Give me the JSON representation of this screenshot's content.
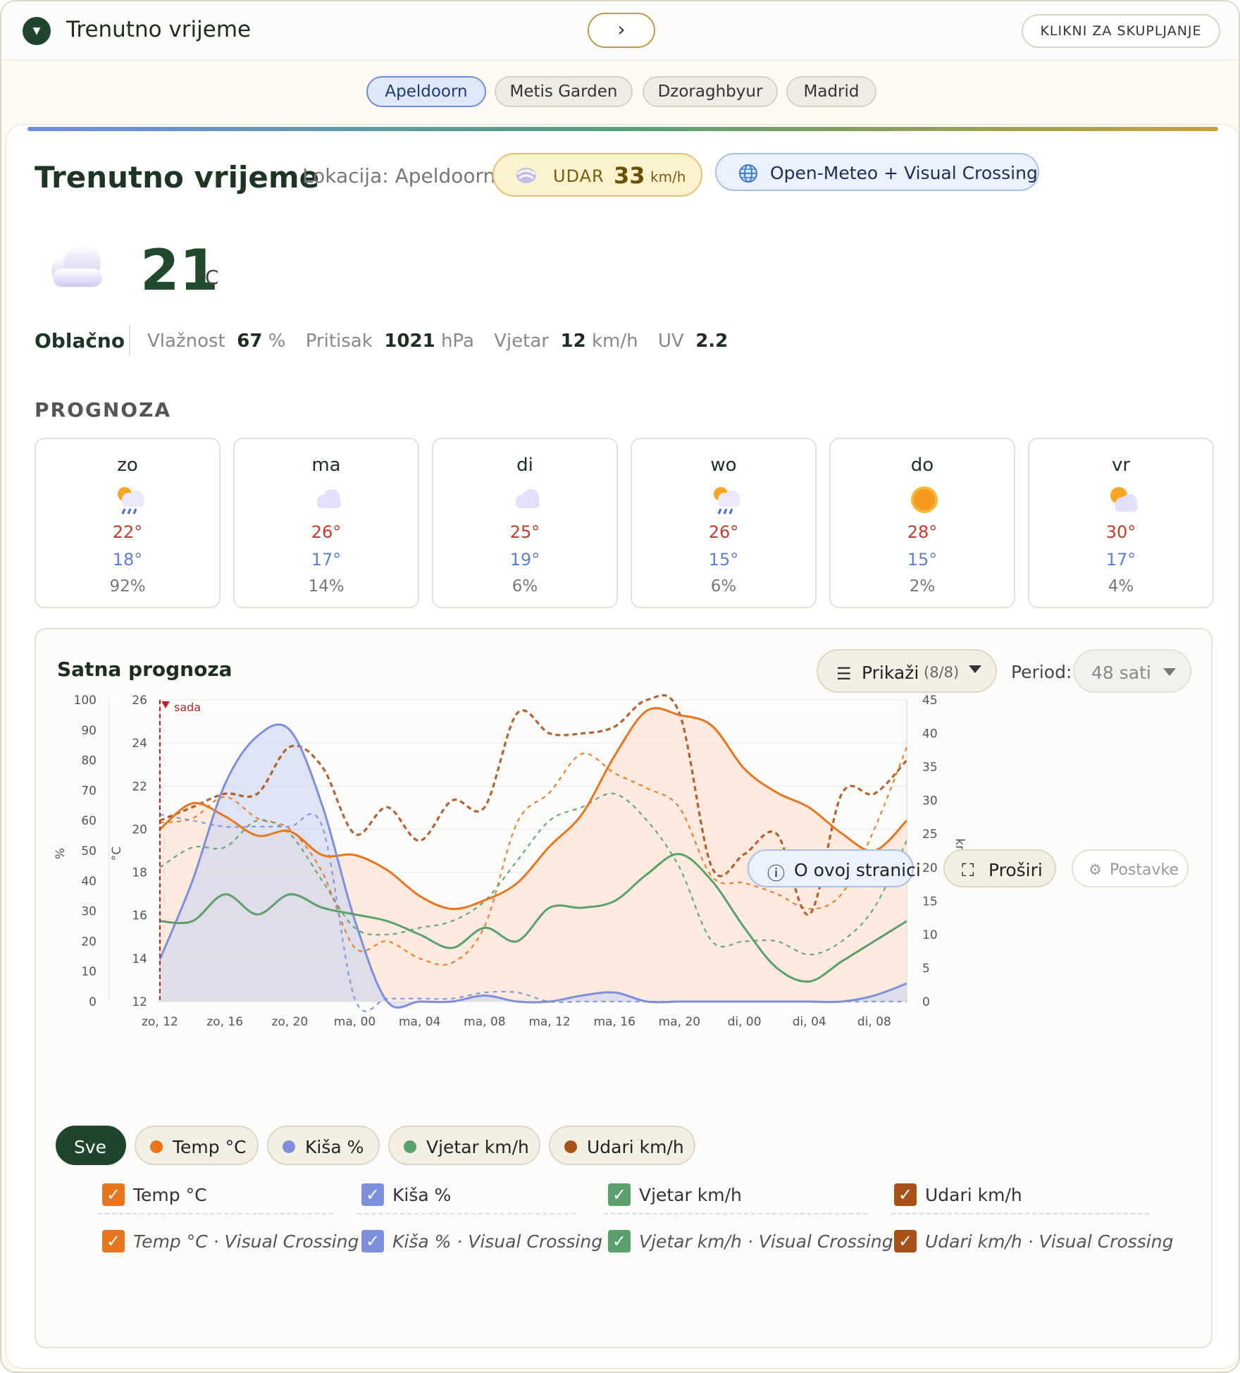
{
  "header": {
    "title": "Trenutno vrijeme",
    "next": "›",
    "collapse": "KLIKNI ZA SKUPLJANJE"
  },
  "locations": [
    "Apeldoorn",
    "Metis Garden",
    "Dzoraghbyur",
    "Madrid"
  ],
  "current": {
    "title": "Trenutno vrijeme",
    "location": "Lokacija: Apeldoorn",
    "gust_label": "UDAR",
    "gust_value": "33",
    "gust_unit": "km/h",
    "source": "Open-Meteo + Visual Crossing",
    "temp": "21",
    "temp_unit": "°C",
    "condition": "Oblačno",
    "humidity_label": "Vlažnost",
    "humidity": "67",
    "humidity_unit": "%",
    "pressure_label": "Pritisak",
    "pressure": "1021",
    "pressure_unit": "hPa",
    "wind_label": "Vjetar",
    "wind": "12",
    "wind_unit": "km/h",
    "uv_label": "UV",
    "uv": "2.2",
    "icon": "cloud-icon"
  },
  "forecast": {
    "heading": "PROGNOZA",
    "days": [
      {
        "day": "zo",
        "icon": "sun-cloud-rain-icon",
        "hi": "22°",
        "lo": "18°",
        "precip": "92%"
      },
      {
        "day": "ma",
        "icon": "cloud-icon",
        "hi": "26°",
        "lo": "17°",
        "precip": "14%"
      },
      {
        "day": "di",
        "icon": "cloud-icon",
        "hi": "25°",
        "lo": "19°",
        "precip": "6%"
      },
      {
        "day": "wo",
        "icon": "sun-cloud-rain-icon",
        "hi": "26°",
        "lo": "15°",
        "precip": "6%"
      },
      {
        "day": "do",
        "icon": "sun-icon",
        "hi": "28°",
        "lo": "15°",
        "precip": "2%"
      },
      {
        "day": "vr",
        "icon": "sun-cloud-icon",
        "hi": "30°",
        "lo": "17°",
        "precip": "4%"
      }
    ]
  },
  "hourly": {
    "title": "Satna prognoza",
    "show_label": "Prikaži",
    "show_count": "(8/8)",
    "period_label": "Period:",
    "period_value": "48 sati",
    "filters": [
      "Sve",
      "Temp °C",
      "Kiša %",
      "Vjetar km/h",
      "Udari km/h"
    ],
    "series_toggles": [
      "Temp °C",
      "Kiša %",
      "Vjetar km/h",
      "Udari km/h",
      "Temp °C · Visual Crossing",
      "Kiša % · Visual Crossing",
      "Vjetar km/h · Visual Crossing",
      "Udari km/h · Visual Crossing"
    ],
    "footer": {
      "about": "O ovoj stranici",
      "expand": "Proširi",
      "settings": "Postavke"
    }
  },
  "colors": {
    "temp": "#e8741e",
    "rain": "#7b8fdc",
    "wind": "#5aa06a",
    "gust": "#a8521a",
    "accent": "#20452d"
  },
  "chart_data": {
    "type": "line",
    "now_marker": "sada",
    "x_ticks": [
      "zo, 12",
      "zo, 16",
      "zo, 20",
      "ma, 00",
      "ma, 04",
      "ma, 08",
      "ma, 12",
      "ma, 16",
      "ma, 20",
      "di, 00",
      "di, 04",
      "di, 08"
    ],
    "axes": {
      "percent": {
        "label": "%",
        "range": [
          0,
          100
        ],
        "ticks": [
          0,
          10,
          20,
          30,
          40,
          50,
          60,
          70,
          80,
          90,
          100
        ]
      },
      "temp": {
        "label": "°C",
        "range": [
          12,
          26
        ],
        "ticks": [
          12,
          14,
          16,
          18,
          20,
          22,
          24,
          26
        ]
      },
      "kmh": {
        "label": "km/h",
        "range": [
          0,
          45
        ],
        "ticks": [
          0,
          5,
          10,
          15,
          20,
          25,
          30,
          35,
          40,
          45
        ]
      }
    },
    "hours": [
      0,
      2,
      4,
      6,
      8,
      10,
      12,
      14,
      16,
      18,
      20,
      22,
      24,
      26,
      28,
      30,
      32,
      34,
      36,
      38,
      40,
      42,
      44,
      46
    ],
    "series": [
      {
        "name": "Temp °C",
        "axis": "temp",
        "style": "solid",
        "values": [
          20.0,
          21.2,
          20.6,
          19.7,
          19.9,
          18.8,
          18.8,
          18.1,
          16.9,
          16.3,
          16.7,
          17.5,
          19.2,
          20.7,
          23.4,
          25.5,
          25.3,
          24.8,
          22.8,
          21.7,
          21.0,
          19.8,
          19.0,
          20.4
        ]
      },
      {
        "name": "Kiša %",
        "axis": "percent",
        "style": "solid",
        "values": [
          14,
          40,
          72,
          88,
          90,
          65,
          27,
          0,
          0,
          0,
          2,
          0,
          0,
          2,
          3,
          0,
          0,
          0,
          0,
          0,
          0,
          0,
          2,
          6
        ]
      },
      {
        "name": "Vjetar km/h",
        "axis": "kmh",
        "style": "solid",
        "values": [
          12,
          12,
          16,
          13,
          16,
          14,
          13,
          12,
          10,
          8,
          11,
          9,
          14,
          14,
          15,
          19,
          22,
          18,
          11,
          5,
          3,
          6,
          9,
          12
        ]
      },
      {
        "name": "Udari km/h",
        "axis": "kmh",
        "style": "solid",
        "values": [
          26,
          26,
          30,
          28,
          33,
          32,
          22,
          21,
          16,
          15,
          23,
          17,
          29,
          31,
          32,
          43,
          42,
          32,
          23,
          10,
          8,
          18,
          23,
          25
        ]
      },
      {
        "name": "Temp °C · Visual Crossing",
        "axis": "temp",
        "style": "dashed",
        "values": [
          20.3,
          20.5,
          21.5,
          20.5,
          20.0,
          18.0,
          14.5,
          14.8,
          14.0,
          13.8,
          15.5,
          20.3,
          21.7,
          23.5,
          22.6,
          21.9,
          21.0,
          17.8,
          17.5,
          17.0,
          16.3,
          17.0,
          20.0,
          23.8
        ]
      },
      {
        "name": "Kiša % · Visual Crossing",
        "axis": "percent",
        "style": "dashed",
        "values": [
          62,
          60,
          58,
          58,
          58,
          58,
          1,
          1,
          1,
          1,
          3,
          3,
          0,
          0,
          0,
          0,
          0,
          0,
          0,
          0,
          0,
          0,
          0,
          0
        ]
      },
      {
        "name": "Vjetar km/h · Visual Crossing",
        "axis": "kmh",
        "style": "dashed",
        "values": [
          20,
          23,
          23,
          27,
          25,
          18,
          11,
          10,
          11,
          12,
          15,
          21,
          27,
          29,
          31,
          27,
          20,
          9,
          9,
          9,
          7,
          9,
          14,
          24
        ]
      },
      {
        "name": "Udari km/h · Visual Crossing",
        "axis": "kmh",
        "style": "dashed",
        "values": [
          27,
          29,
          31,
          31,
          38,
          35,
          25,
          29,
          24,
          30,
          29,
          43,
          40,
          40,
          41,
          45,
          43,
          20,
          22,
          25,
          13,
          31,
          31,
          36
        ]
      }
    ]
  }
}
